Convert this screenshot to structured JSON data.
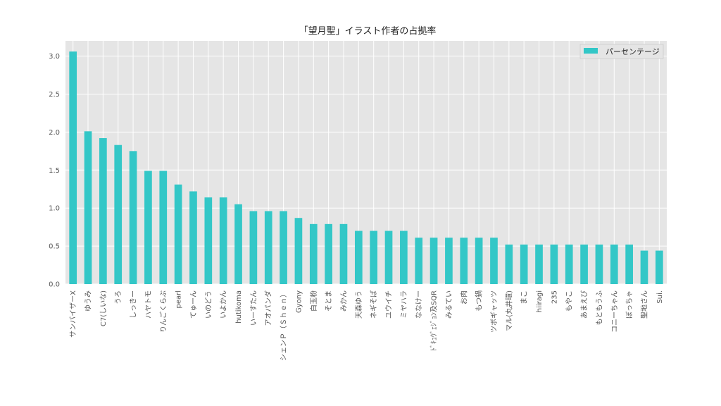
{
  "chart_data": {
    "type": "bar",
    "title": "「望月聖」イラスト作者の占拠率",
    "xlabel": "",
    "ylabel": "",
    "ylim": [
      0,
      3.2
    ],
    "yticks": [
      "0.0",
      "0.5",
      "1.0",
      "1.5",
      "2.0",
      "2.5",
      "3.0"
    ],
    "grid": true,
    "legend_position": "top-right",
    "color": "#33c7c7",
    "categories": [
      "サンバイザーX",
      "ゆうみ",
      "C7(しいな)",
      "うろ",
      "しっきー",
      "ハヤトモ",
      "りんごくらぶ",
      "pearl",
      "てゅーん",
      "いのどう",
      "いよかん",
      "hutikoma",
      "いーすたん",
      "アオパンダ",
      "シェンＰ（Ｓｈｅｎ）",
      "Gyony",
      "白玉粉",
      "そとま",
      "みかん",
      "天森ゆう",
      "ネギそば",
      "ユウイチ",
      "ミヤハラ",
      "ななけー",
      "ﾄﾞｷｭｳﾞｪｼﾞｮﾝ及SQR",
      "みるてい",
      "お肉",
      "もつ鍋",
      "ツボギャッツ",
      "マル(丸井環)",
      "まこ",
      "hiiragi",
      "235",
      "もやこ",
      "あまえび",
      "もともうふ",
      "コニーちゃん",
      "ぼっちゃ",
      "聖地さん",
      "Sui."
    ],
    "series": [
      {
        "name": "パーセンテージ",
        "values": [
          3.06,
          2.01,
          1.92,
          1.83,
          1.75,
          1.49,
          1.49,
          1.31,
          1.22,
          1.14,
          1.14,
          1.05,
          0.96,
          0.96,
          0.96,
          0.87,
          0.79,
          0.79,
          0.79,
          0.7,
          0.7,
          0.7,
          0.7,
          0.61,
          0.61,
          0.61,
          0.61,
          0.61,
          0.61,
          0.52,
          0.52,
          0.52,
          0.52,
          0.52,
          0.52,
          0.52,
          0.52,
          0.52,
          0.44,
          0.44
        ]
      }
    ]
  }
}
